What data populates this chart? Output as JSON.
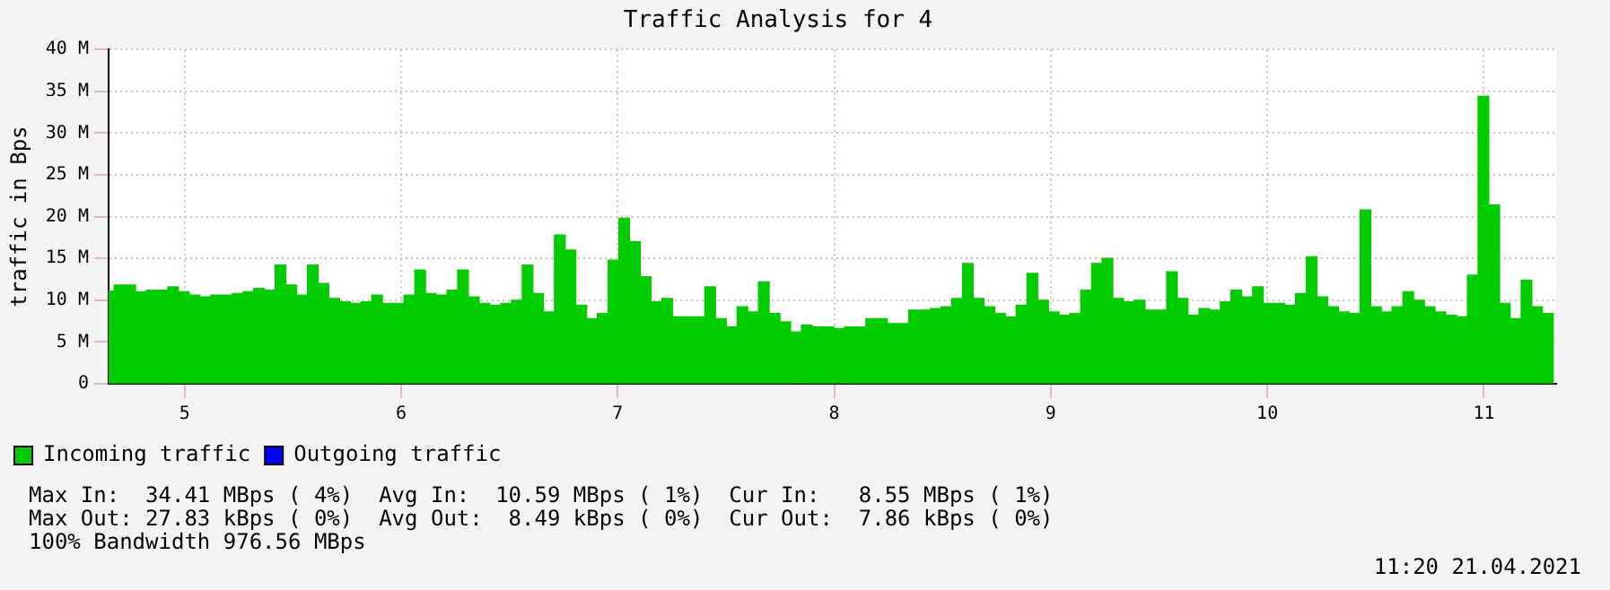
{
  "chart_data": {
    "type": "bar",
    "title": "Traffic Analysis for 4",
    "ylabel": "traffic in Bps",
    "x": [
      4.65,
      4.699,
      4.749,
      4.798,
      4.848,
      4.897,
      4.947,
      4.997,
      5.046,
      5.096,
      5.145,
      5.195,
      5.245,
      5.294,
      5.344,
      5.393,
      5.443,
      5.493,
      5.542,
      5.592,
      5.641,
      5.691,
      5.741,
      5.79,
      5.84,
      5.889,
      5.939,
      5.989,
      6.038,
      6.088,
      6.137,
      6.187,
      6.237,
      6.286,
      6.336,
      6.385,
      6.435,
      6.485,
      6.534,
      6.584,
      6.633,
      6.683,
      6.733,
      6.782,
      6.832,
      6.881,
      6.931,
      6.981,
      7.03,
      7.08,
      7.129,
      7.179,
      7.229,
      7.278,
      7.328,
      7.377,
      7.427,
      7.477,
      7.526,
      7.576,
      7.625,
      7.675,
      7.725,
      7.774,
      7.824,
      7.873,
      7.923,
      7.973,
      8.022,
      8.072,
      8.121,
      8.171,
      8.221,
      8.27,
      8.32,
      8.369,
      8.419,
      8.469,
      8.518,
      8.568,
      8.617,
      8.667,
      8.717,
      8.766,
      8.816,
      8.865,
      8.915,
      8.965,
      9.014,
      9.064,
      9.113,
      9.163,
      9.213,
      9.262,
      9.312,
      9.361,
      9.411,
      9.461,
      9.51,
      9.56,
      9.609,
      9.659,
      9.709,
      9.758,
      9.808,
      9.857,
      9.907,
      9.957,
      10.006,
      10.056,
      10.105,
      10.155,
      10.205,
      10.254,
      10.304,
      10.353,
      10.403,
      10.453,
      10.502,
      10.552,
      10.601,
      10.651,
      10.701,
      10.75,
      10.8,
      10.849,
      10.899,
      10.949,
      10.998,
      11.048,
      11.097,
      11.147,
      11.197,
      11.246,
      11.296
    ],
    "series": [
      {
        "name": "Incoming traffic",
        "color": "#00cc00",
        "values": [
          11.1,
          11.8,
          11.8,
          11.0,
          11.2,
          11.2,
          11.6,
          11.0,
          10.6,
          10.4,
          10.6,
          10.6,
          10.8,
          11.0,
          11.4,
          11.2,
          14.2,
          11.8,
          10.6,
          14.2,
          12.0,
          10.2,
          9.8,
          9.6,
          9.8,
          10.6,
          9.6,
          9.6,
          10.6,
          13.6,
          10.8,
          10.6,
          11.2,
          13.6,
          10.4,
          9.6,
          9.4,
          9.6,
          10.0,
          14.2,
          10.8,
          8.6,
          17.8,
          16.0,
          9.4,
          7.8,
          8.4,
          14.8,
          19.8,
          17.0,
          12.8,
          9.8,
          10.2,
          8.0,
          8.0,
          8.0,
          11.6,
          7.8,
          6.8,
          9.2,
          8.6,
          12.2,
          8.4,
          7.4,
          6.2,
          7.0,
          6.8,
          6.8,
          6.6,
          6.8,
          6.8,
          7.8,
          7.8,
          7.2,
          7.2,
          8.8,
          8.8,
          9.0,
          9.2,
          10.2,
          14.4,
          10.2,
          9.2,
          8.4,
          8.0,
          9.4,
          13.2,
          10.0,
          8.6,
          8.2,
          8.4,
          11.2,
          14.4,
          15.0,
          10.2,
          9.8,
          10.0,
          8.8,
          8.8,
          13.4,
          10.2,
          8.2,
          9.0,
          8.8,
          9.8,
          11.2,
          10.4,
          11.6,
          9.6,
          9.6,
          9.4,
          10.8,
          15.2,
          10.4,
          9.2,
          8.6,
          8.4,
          20.8,
          9.2,
          8.6,
          9.2,
          11.0,
          10.0,
          9.2,
          8.6,
          8.2,
          8.0,
          13.0,
          34.4,
          21.4,
          9.6,
          7.8,
          12.4,
          9.2,
          8.4
        ]
      },
      {
        "name": "Outgoing traffic",
        "color": "#0000ff",
        "values": [
          null,
          null,
          null,
          null,
          null,
          null,
          null,
          null,
          null,
          null,
          null,
          null,
          null,
          null,
          null,
          null,
          null,
          null,
          null,
          null,
          null,
          null,
          null,
          null,
          null,
          null,
          null,
          null,
          null,
          null,
          null,
          null,
          null,
          null,
          null,
          null,
          null,
          null,
          null,
          null,
          null,
          null,
          null,
          null,
          null,
          null,
          null,
          null,
          null,
          null,
          null,
          null,
          null,
          null,
          null,
          null,
          null,
          null,
          null,
          null,
          null,
          null,
          null,
          null,
          null,
          null,
          null,
          null,
          null,
          null,
          null,
          null,
          null,
          null,
          null,
          null,
          null,
          null,
          null,
          null,
          null,
          null,
          null,
          null,
          null,
          null,
          null,
          null,
          null,
          null,
          null,
          null,
          null,
          null,
          null,
          null,
          null,
          null,
          null,
          null,
          null,
          null,
          null,
          null,
          null,
          null,
          null,
          null,
          null,
          null,
          null,
          null,
          null,
          null,
          null,
          null,
          null,
          null,
          null,
          null,
          null,
          null,
          null,
          null,
          null,
          null,
          null,
          null,
          null,
          null,
          null,
          null,
          null,
          null,
          null
        ]
      }
    ],
    "xlim": [
      4.649,
      11.334
    ],
    "xticks": [
      5,
      6,
      7,
      8,
      9,
      10,
      11
    ],
    "ylim": [
      0,
      40
    ],
    "yticks": [
      0,
      {
        "value": 5,
        "label": "5 M"
      },
      {
        "value": 10,
        "label": "10 M"
      },
      {
        "value": 15,
        "label": "15 M"
      },
      {
        "value": 20,
        "label": "20 M"
      },
      {
        "value": 25,
        "label": "25 M"
      },
      {
        "value": 30,
        "label": "30 M"
      },
      {
        "value": 35,
        "label": "35 M"
      },
      {
        "value": 40,
        "label": "40 M"
      }
    ],
    "grid": true,
    "legend": "bottom left",
    "annotations": [
      "Max In:  34.41 MBps ( 4%)  Avg In:  10.59 MBps ( 1%)  Cur In:   8.55 MBps ( 1%)",
      "Max Out: 27.83 kBps ( 0%)  Avg Out:  8.49 kBps ( 0%)  Cur Out:  7.86 kBps ( 0%)",
      "100% Bandwidth 976.56 MBps",
      "11:20 21.04.2021"
    ]
  }
}
